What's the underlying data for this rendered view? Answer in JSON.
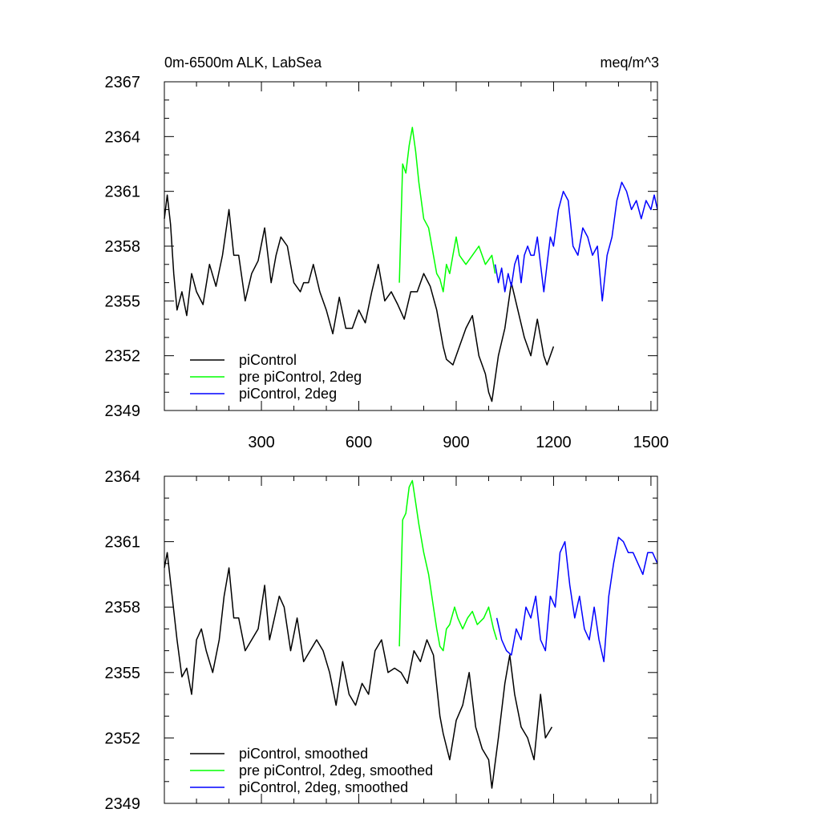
{
  "figure": {
    "title_left": "0m-6500m ALK, LabSea",
    "title_right": "meq/m^3"
  },
  "chart_data": [
    {
      "type": "line",
      "title": "0m-6500m ALK, LabSea",
      "units": "meq/m^3",
      "xlim": [
        1,
        1520
      ],
      "ylim": [
        2349,
        2367
      ],
      "xticks": [
        300,
        600,
        900,
        1200,
        1500
      ],
      "xtick_labels": [
        "300",
        "600",
        "900",
        "1200",
        "1500"
      ],
      "yticks": [
        2349,
        2352,
        2355,
        2358,
        2361,
        2364,
        2367
      ],
      "ytick_labels": [
        "2349",
        "2352",
        "2355",
        "2358",
        "2361",
        "2364",
        "2367"
      ],
      "legend_position": "bottom-left",
      "series": [
        {
          "name": "piControl",
          "color": "#000000",
          "x": [
            1,
            10,
            20,
            30,
            40,
            55,
            70,
            85,
            100,
            120,
            140,
            160,
            180,
            200,
            215,
            230,
            250,
            270,
            290,
            310,
            330,
            345,
            360,
            380,
            400,
            420,
            430,
            445,
            460,
            480,
            500,
            520,
            540,
            560,
            580,
            600,
            620,
            640,
            660,
            680,
            700,
            720,
            740,
            760,
            780,
            800,
            820,
            840,
            860,
            870,
            890,
            910,
            930,
            950,
            970,
            990,
            1000,
            1010,
            1030,
            1050,
            1070,
            1090,
            1110,
            1130,
            1150,
            1170,
            1180,
            1200
          ],
          "values": [
            2359.5,
            2360.8,
            2359.2,
            2356.5,
            2354.5,
            2355.5,
            2354.2,
            2356.5,
            2355.5,
            2354.8,
            2357.0,
            2355.8,
            2357.5,
            2360.0,
            2357.5,
            2357.5,
            2355.0,
            2356.5,
            2357.2,
            2359.0,
            2356.0,
            2357.5,
            2358.5,
            2358.0,
            2356.0,
            2355.5,
            2356.0,
            2356.0,
            2357.0,
            2355.5,
            2354.5,
            2353.2,
            2355.2,
            2353.5,
            2353.5,
            2354.5,
            2353.8,
            2355.5,
            2357.0,
            2355.0,
            2355.5,
            2354.8,
            2354.0,
            2355.5,
            2355.5,
            2356.5,
            2355.8,
            2354.5,
            2352.5,
            2351.8,
            2351.5,
            2352.5,
            2353.5,
            2354.2,
            2352.0,
            2351.0,
            2350.0,
            2349.5,
            2352.0,
            2353.5,
            2356.0,
            2354.5,
            2353.0,
            2352.0,
            2354.0,
            2352.0,
            2351.5,
            2352.5
          ]
        },
        {
          "name": "pre piControl, 2deg",
          "color": "#00ff00",
          "x": [
            725,
            735,
            745,
            755,
            765,
            775,
            785,
            800,
            815,
            830,
            840,
            850,
            860,
            870,
            880,
            890,
            900,
            910,
            930,
            950,
            970,
            990,
            1010,
            1020
          ],
          "values": [
            2356.0,
            2362.5,
            2362.0,
            2363.5,
            2364.5,
            2363.2,
            2361.5,
            2359.5,
            2359.0,
            2357.5,
            2356.5,
            2356.2,
            2355.5,
            2357.0,
            2356.5,
            2357.5,
            2358.5,
            2357.5,
            2357.0,
            2357.5,
            2358.0,
            2357.0,
            2357.5,
            2356.5
          ]
        },
        {
          "name": "piControl, 2deg",
          "color": "#0000ff",
          "x": [
            1020,
            1030,
            1040,
            1050,
            1060,
            1070,
            1080,
            1090,
            1100,
            1110,
            1120,
            1130,
            1140,
            1150,
            1160,
            1170,
            1180,
            1190,
            1200,
            1215,
            1230,
            1245,
            1260,
            1275,
            1290,
            1305,
            1320,
            1335,
            1350,
            1365,
            1380,
            1395,
            1410,
            1425,
            1440,
            1455,
            1470,
            1485,
            1500,
            1510,
            1520
          ],
          "values": [
            2357.0,
            2356.0,
            2356.8,
            2355.5,
            2356.5,
            2355.8,
            2357.0,
            2357.5,
            2356.0,
            2357.5,
            2358.0,
            2357.5,
            2357.5,
            2358.5,
            2357.0,
            2355.5,
            2357.0,
            2358.5,
            2358.0,
            2360.0,
            2361.0,
            2360.5,
            2358.0,
            2357.5,
            2359.0,
            2358.5,
            2357.5,
            2358.0,
            2355.0,
            2357.5,
            2358.5,
            2360.5,
            2361.5,
            2361.0,
            2360.0,
            2360.5,
            2359.5,
            2360.5,
            2360.0,
            2360.8,
            2360.0
          ]
        }
      ]
    },
    {
      "type": "line",
      "xlim": [
        1,
        1520
      ],
      "ylim": [
        2349,
        2364
      ],
      "xticks": [
        300,
        600,
        900,
        1200,
        1500
      ],
      "yticks": [
        2349,
        2352,
        2355,
        2358,
        2361,
        2364
      ],
      "ytick_labels": [
        "2349",
        "2352",
        "2355",
        "2358",
        "2361",
        "2364"
      ],
      "legend_position": "bottom-left",
      "series": [
        {
          "name": "piControl, smoothed",
          "color": "#000000",
          "x": [
            1,
            10,
            25,
            40,
            55,
            70,
            85,
            100,
            115,
            130,
            150,
            170,
            185,
            200,
            215,
            230,
            250,
            270,
            290,
            310,
            325,
            340,
            355,
            370,
            390,
            410,
            430,
            450,
            470,
            490,
            510,
            530,
            550,
            570,
            590,
            610,
            630,
            650,
            670,
            690,
            710,
            730,
            750,
            770,
            790,
            810,
            830,
            850,
            860,
            880,
            900,
            920,
            940,
            960,
            980,
            1000,
            1010,
            1030,
            1050,
            1065,
            1080,
            1100,
            1120,
            1140,
            1160,
            1175,
            1195
          ],
          "values": [
            2359.8,
            2360.5,
            2358.5,
            2356.5,
            2354.8,
            2355.2,
            2354.0,
            2356.5,
            2357.0,
            2356.0,
            2355.0,
            2356.5,
            2358.5,
            2359.8,
            2357.5,
            2357.5,
            2356.0,
            2356.5,
            2357.0,
            2359.0,
            2356.5,
            2357.5,
            2358.5,
            2358.0,
            2356.0,
            2357.5,
            2355.5,
            2356.0,
            2356.5,
            2356.0,
            2355.0,
            2353.5,
            2355.5,
            2354.0,
            2353.5,
            2354.5,
            2354.0,
            2356.0,
            2356.5,
            2355.0,
            2355.2,
            2355.0,
            2354.5,
            2356.0,
            2355.5,
            2356.5,
            2355.8,
            2353.0,
            2352.2,
            2351.0,
            2352.8,
            2353.5,
            2355.0,
            2352.5,
            2351.5,
            2351.0,
            2349.7,
            2352.0,
            2354.5,
            2355.8,
            2354.0,
            2352.5,
            2352.0,
            2351.0,
            2354.0,
            2352.0,
            2352.5
          ]
        },
        {
          "name": "pre piControl, 2deg, smoothed",
          "color": "#00ff00",
          "x": [
            725,
            735,
            745,
            755,
            765,
            775,
            785,
            800,
            815,
            830,
            840,
            850,
            860,
            870,
            880,
            895,
            905,
            920,
            935,
            950,
            965,
            985,
            1000,
            1015,
            1025
          ],
          "values": [
            2356.2,
            2362.0,
            2362.3,
            2363.5,
            2363.8,
            2362.8,
            2361.8,
            2360.5,
            2359.5,
            2358.0,
            2357.0,
            2356.2,
            2356.0,
            2357.0,
            2357.2,
            2358.0,
            2357.5,
            2357.0,
            2357.5,
            2357.8,
            2357.2,
            2357.5,
            2358.0,
            2357.0,
            2356.5
          ]
        },
        {
          "name": "piControl, 2deg, smoothed",
          "color": "#0000ff",
          "x": [
            1025,
            1040,
            1055,
            1070,
            1085,
            1100,
            1115,
            1130,
            1145,
            1160,
            1175,
            1190,
            1205,
            1220,
            1235,
            1250,
            1265,
            1280,
            1295,
            1310,
            1325,
            1340,
            1355,
            1370,
            1385,
            1400,
            1415,
            1430,
            1445,
            1460,
            1475,
            1490,
            1505,
            1520
          ],
          "values": [
            2357.5,
            2356.5,
            2356.0,
            2355.8,
            2357.0,
            2356.5,
            2358.0,
            2357.5,
            2358.5,
            2356.5,
            2356.0,
            2358.5,
            2358.0,
            2360.5,
            2361.0,
            2359.0,
            2357.5,
            2358.5,
            2357.0,
            2356.5,
            2358.0,
            2356.5,
            2355.5,
            2358.5,
            2360.0,
            2361.2,
            2361.0,
            2360.5,
            2360.5,
            2360.0,
            2359.5,
            2360.5,
            2360.5,
            2360.0
          ]
        }
      ]
    }
  ]
}
